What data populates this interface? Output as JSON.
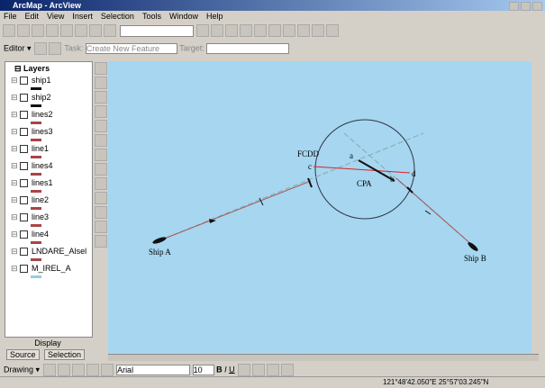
{
  "window": {
    "title": "ArcMap - ArcView"
  },
  "menu": [
    "File",
    "Edit",
    "View",
    "Insert",
    "Selection",
    "Tools",
    "Window",
    "Help"
  ],
  "editor": {
    "label": "Editor",
    "task_label": "Task:",
    "task": "Create New Feature",
    "target_label": "Target:"
  },
  "toc": {
    "root": "Layers",
    "layers": [
      "ship1",
      "ship2",
      "lines2",
      "lines3",
      "line1",
      "lines4",
      "lines1",
      "line2",
      "line3",
      "line4",
      "LNDARE_Alsel",
      "M_IREL_A"
    ]
  },
  "tabs": [
    "Display",
    "Source",
    "Selection"
  ],
  "map": {
    "labels": {
      "fcdd": "FCDD",
      "cpa": "CPA",
      "ship_a": "Ship A",
      "ship_b": "Ship B",
      "a": "a",
      "b": "b",
      "c": "c",
      "d": "d"
    }
  },
  "drawing": {
    "label": "Drawing",
    "font": "Arial",
    "size": "10"
  },
  "status": {
    "coords": "121°48'42.050\"E 25°57'03.245\"N"
  }
}
